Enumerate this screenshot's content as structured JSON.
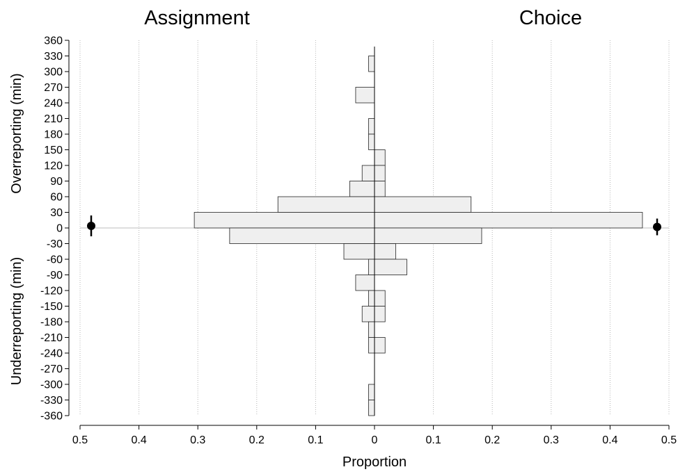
{
  "chart_data": {
    "type": "bar",
    "orientation": "horizontal-back-to-back",
    "panels": [
      {
        "name": "Assignment",
        "side": "left"
      },
      {
        "name": "Choice",
        "side": "right"
      }
    ],
    "xlabel": "Proportion",
    "ylabel_top": "Overreporting (min)",
    "ylabel_bottom": "Underreporting (min)",
    "xlim": [
      0,
      0.5
    ],
    "ylim": [
      -360,
      360
    ],
    "x_ticks": [
      "0.5",
      "0.4",
      "0.3",
      "0.2",
      "0.1",
      "0",
      "0.1",
      "0.2",
      "0.3",
      "0.4",
      "0.5"
    ],
    "y_ticks": [
      360,
      330,
      300,
      270,
      240,
      210,
      180,
      150,
      120,
      90,
      60,
      30,
      0,
      -30,
      -60,
      -90,
      -120,
      -150,
      -180,
      -210,
      -240,
      -270,
      -300,
      -330,
      -360
    ],
    "grid_vertical": true,
    "bins": [
      {
        "from": 300,
        "to": 330,
        "assignment": 0.01,
        "choice": 0
      },
      {
        "from": 240,
        "to": 270,
        "assignment": 0.032,
        "choice": 0
      },
      {
        "from": 180,
        "to": 210,
        "assignment": 0.01,
        "choice": 0
      },
      {
        "from": 150,
        "to": 180,
        "assignment": 0.01,
        "choice": 0
      },
      {
        "from": 120,
        "to": 150,
        "assignment": 0,
        "choice": 0.018
      },
      {
        "from": 90,
        "to": 120,
        "assignment": 0.021,
        "choice": 0.018
      },
      {
        "from": 60,
        "to": 90,
        "assignment": 0.042,
        "choice": 0.018
      },
      {
        "from": 30,
        "to": 60,
        "assignment": 0.164,
        "choice": 0.164
      },
      {
        "from": 0,
        "to": 30,
        "assignment": 0.306,
        "choice": 0.455
      },
      {
        "from": -30,
        "to": 0,
        "assignment": 0.246,
        "choice": 0.182
      },
      {
        "from": -60,
        "to": -30,
        "assignment": 0.052,
        "choice": 0.036
      },
      {
        "from": -90,
        "to": -60,
        "assignment": 0.01,
        "choice": 0.055
      },
      {
        "from": -120,
        "to": -90,
        "assignment": 0.032,
        "choice": 0
      },
      {
        "from": -150,
        "to": -120,
        "assignment": 0.01,
        "choice": 0.018
      },
      {
        "from": -180,
        "to": -150,
        "assignment": 0.021,
        "choice": 0.018
      },
      {
        "from": -210,
        "to": -180,
        "assignment": 0.01,
        "choice": 0
      },
      {
        "from": -240,
        "to": -210,
        "assignment": 0.01,
        "choice": 0.018
      },
      {
        "from": -330,
        "to": -300,
        "assignment": 0.01,
        "choice": 0
      },
      {
        "from": -360,
        "to": -330,
        "assignment": 0.01,
        "choice": 0
      }
    ],
    "mean_markers": [
      {
        "panel": "Assignment",
        "y": 4,
        "y_low": -16,
        "y_high": 24
      },
      {
        "panel": "Choice",
        "y": 2,
        "y_low": -14,
        "y_high": 18
      }
    ]
  }
}
